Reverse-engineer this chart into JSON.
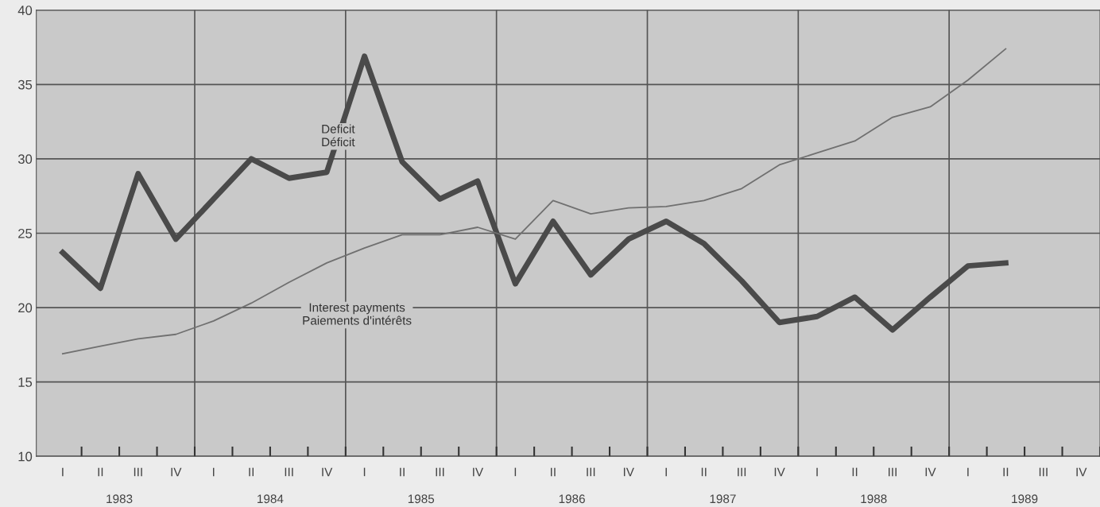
{
  "chart_data": {
    "type": "line",
    "categories": [
      "I",
      "II",
      "III",
      "IV",
      "I",
      "II",
      "III",
      "IV",
      "I",
      "II",
      "III",
      "IV",
      "I",
      "II",
      "III",
      "IV",
      "I",
      "II",
      "III",
      "IV",
      "I",
      "II",
      "III",
      "IV",
      "I",
      "II",
      "III",
      "IV"
    ],
    "series": [
      {
        "name": "Deficit\nDéficit",
        "color": "#4a4a4a",
        "values": [
          23.7,
          21.3,
          29.0,
          24.6,
          27.3,
          30.0,
          28.7,
          29.1,
          36.9,
          29.8,
          27.3,
          28.5,
          21.6,
          25.8,
          22.2,
          24.6,
          25.8,
          24.3,
          21.8,
          19.0,
          19.4,
          20.7,
          18.5,
          20.7,
          22.8,
          23.0,
          null,
          null
        ]
      },
      {
        "name": "Interest payments\nPaiements d'intérêts",
        "color": "#707070",
        "values": [
          16.9,
          17.4,
          17.9,
          18.2,
          19.1,
          20.3,
          21.7,
          23.0,
          24.0,
          24.9,
          24.9,
          25.4,
          24.6,
          27.2,
          26.3,
          26.7,
          26.8,
          27.2,
          28.0,
          29.6,
          30.4,
          31.2,
          32.8,
          33.5,
          35.3,
          37.4,
          null,
          null
        ]
      }
    ],
    "annotations": [
      "1983",
      "1984",
      "1985",
      "1986",
      "1987",
      "1988",
      "1989"
    ],
    "ylim": [
      10,
      40
    ],
    "yticks": [
      10,
      15,
      20,
      25,
      30,
      35,
      40
    ],
    "grid": "y",
    "marker": "none",
    "line_style": "solid",
    "legend": false
  }
}
